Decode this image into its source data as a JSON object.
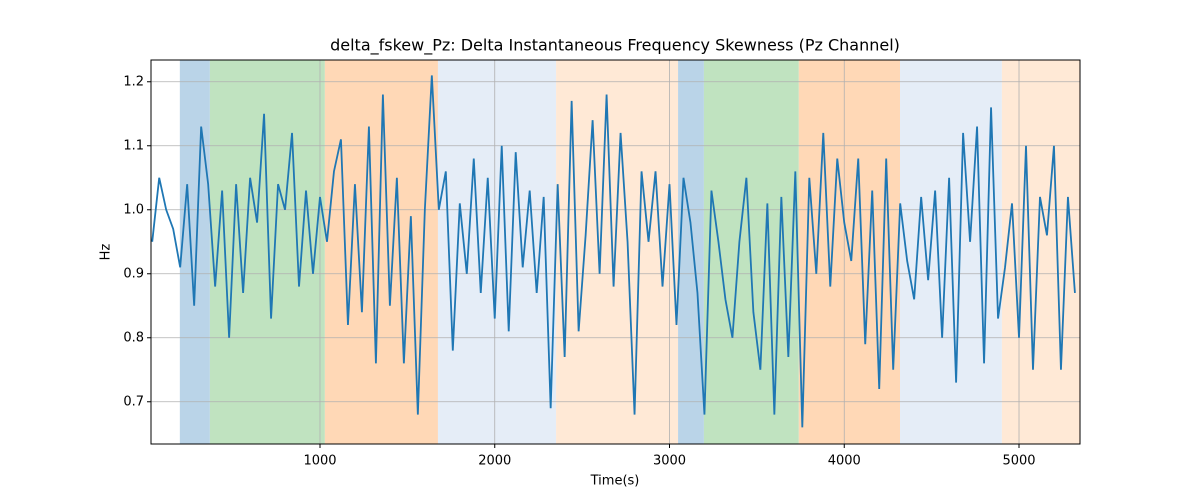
{
  "chart_data": {
    "type": "line",
    "title": "delta_fskew_Pz: Delta Instantaneous Frequency Skewness (Pz Channel)",
    "x_label": "Time(s)",
    "y_label": "Hz",
    "x": [
      40,
      80,
      120,
      160,
      200,
      240,
      280,
      320,
      360,
      400,
      440,
      480,
      520,
      560,
      600,
      640,
      680,
      720,
      760,
      800,
      840,
      880,
      920,
      960,
      1000,
      1040,
      1080,
      1120,
      1160,
      1200,
      1240,
      1280,
      1320,
      1360,
      1400,
      1440,
      1480,
      1520,
      1560,
      1600,
      1640,
      1680,
      1720,
      1760,
      1800,
      1840,
      1880,
      1920,
      1960,
      2000,
      2040,
      2080,
      2120,
      2160,
      2200,
      2240,
      2280,
      2320,
      2360,
      2400,
      2440,
      2480,
      2520,
      2560,
      2600,
      2640,
      2680,
      2720,
      2760,
      2800,
      2840,
      2880,
      2920,
      2960,
      3000,
      3040,
      3080,
      3120,
      3160,
      3200,
      3240,
      3280,
      3320,
      3360,
      3400,
      3440,
      3480,
      3520,
      3560,
      3600,
      3640,
      3680,
      3720,
      3760,
      3800,
      3840,
      3880,
      3920,
      3960,
      4000,
      4040,
      4080,
      4120,
      4160,
      4200,
      4240,
      4280,
      4320,
      4360,
      4400,
      4440,
      4480,
      4520,
      4560,
      4600,
      4640,
      4680,
      4720,
      4760,
      4800,
      4840,
      4880,
      4920,
      4960,
      5000,
      5040,
      5080,
      5120,
      5160,
      5200,
      5240,
      5280,
      5320
    ],
    "series": [
      {
        "color": "#1f77b4",
        "values": [
          0.95,
          1.05,
          1.0,
          0.97,
          0.91,
          1.04,
          0.85,
          1.13,
          1.04,
          0.88,
          1.03,
          0.8,
          1.04,
          0.87,
          1.05,
          0.98,
          1.15,
          0.83,
          1.04,
          1.0,
          1.12,
          0.88,
          1.03,
          0.9,
          1.02,
          0.95,
          1.06,
          1.11,
          0.82,
          1.04,
          0.84,
          1.13,
          0.76,
          1.18,
          0.85,
          1.05,
          0.76,
          0.99,
          0.68,
          1.0,
          1.21,
          1.0,
          1.06,
          0.78,
          1.01,
          0.9,
          1.08,
          0.87,
          1.05,
          0.83,
          1.1,
          0.81,
          1.09,
          0.91,
          1.03,
          0.87,
          1.02,
          0.69,
          1.04,
          0.77,
          1.17,
          0.81,
          0.96,
          1.14,
          0.9,
          1.18,
          0.88,
          1.12,
          0.95,
          0.68,
          1.06,
          0.95,
          1.06,
          0.88,
          1.04,
          0.82,
          1.05,
          0.98,
          0.87,
          0.68,
          1.03,
          0.95,
          0.86,
          0.8,
          0.95,
          1.05,
          0.84,
          0.75,
          1.01,
          0.68,
          1.02,
          0.77,
          1.06,
          0.66,
          1.05,
          0.9,
          1.12,
          0.88,
          1.08,
          0.98,
          0.92,
          1.08,
          0.79,
          1.03,
          0.72,
          1.08,
          0.75,
          1.01,
          0.92,
          0.86,
          1.02,
          0.89,
          1.03,
          0.8,
          1.05,
          0.73,
          1.12,
          0.95,
          1.13,
          0.76,
          1.16,
          0.83,
          0.91,
          1.01,
          0.8,
          1.1,
          0.75,
          1.02,
          0.96,
          1.1,
          0.75,
          1.02,
          0.87
        ]
      }
    ],
    "spans": [
      {
        "start": 198,
        "end": 370,
        "color": "#bad4e8"
      },
      {
        "start": 370,
        "end": 1028,
        "color": "#c0e3c0"
      },
      {
        "start": 1028,
        "end": 1675,
        "color": "#ffd8b6"
      },
      {
        "start": 1675,
        "end": 2351,
        "color": "#e5edf7"
      },
      {
        "start": 2351,
        "end": 3049,
        "color": "#ffe9d6"
      },
      {
        "start": 3049,
        "end": 3197,
        "color": "#bad4e8"
      },
      {
        "start": 3197,
        "end": 3740,
        "color": "#c0e3c0"
      },
      {
        "start": 3740,
        "end": 4319,
        "color": "#ffd8b6"
      },
      {
        "start": 4319,
        "end": 4902,
        "color": "#e5edf7"
      },
      {
        "start": 4902,
        "end": 5349,
        "color": "#ffe9d6"
      }
    ],
    "xlim": [
      33,
      5349
    ],
    "ylim": [
      0.634,
      1.234
    ],
    "xticks": [
      1000,
      2000,
      3000,
      4000,
      5000
    ],
    "yticks": [
      0.7,
      0.8,
      0.9,
      {
        "value": 1,
        "label": "1.0"
      },
      1.1,
      1.2
    ],
    "grid": true
  }
}
